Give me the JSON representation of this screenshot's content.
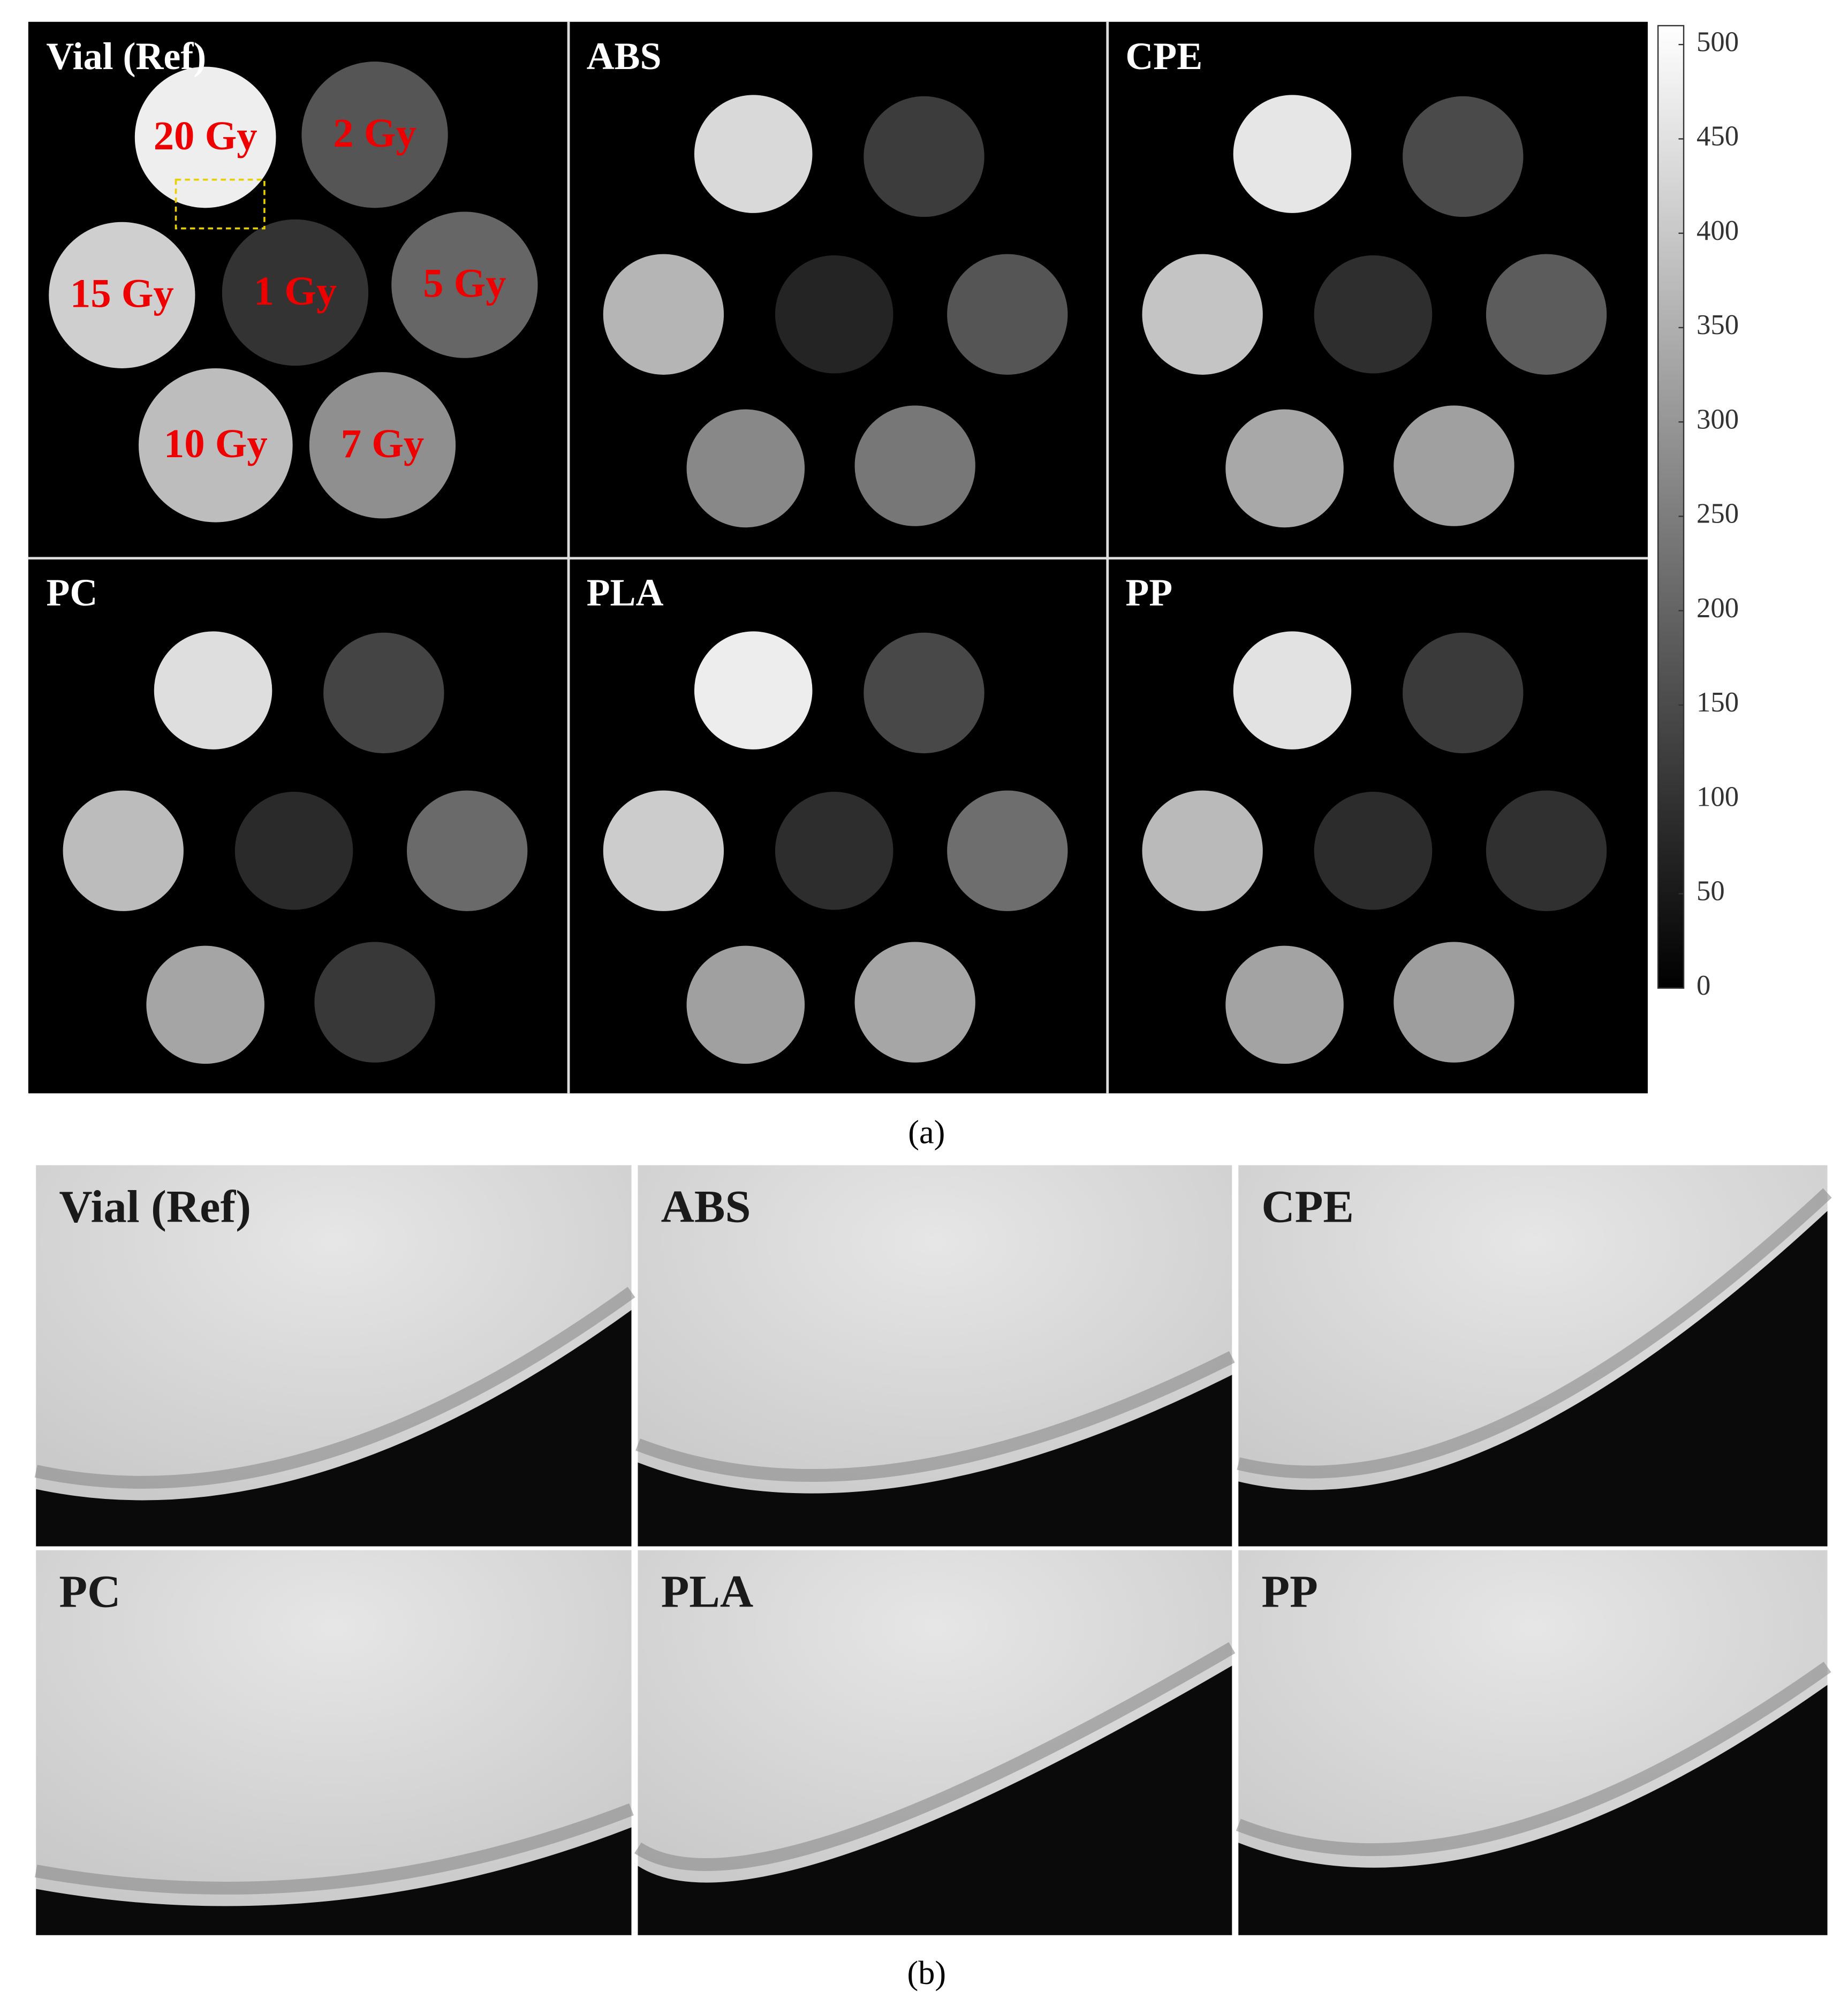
{
  "panel_a": {
    "caption": "(a)",
    "panels": [
      "Vial (Ref)",
      "ABS",
      "CPE",
      "PC",
      "PLA",
      "PP"
    ],
    "dose_labels": [
      "20 Gy",
      "2 Gy",
      "15 Gy",
      "1 Gy",
      "5 Gy",
      "10 Gy",
      "7 Gy"
    ],
    "colorbar": {
      "lim": [
        0,
        510
      ],
      "ticks": [
        0,
        50,
        100,
        150,
        200,
        250,
        300,
        350,
        400,
        450,
        500
      ]
    }
  },
  "panel_b": {
    "caption": "(b)",
    "panels": [
      "Vial (Ref)",
      "ABS",
      "CPE",
      "PC",
      "PLA",
      "PP"
    ]
  }
}
